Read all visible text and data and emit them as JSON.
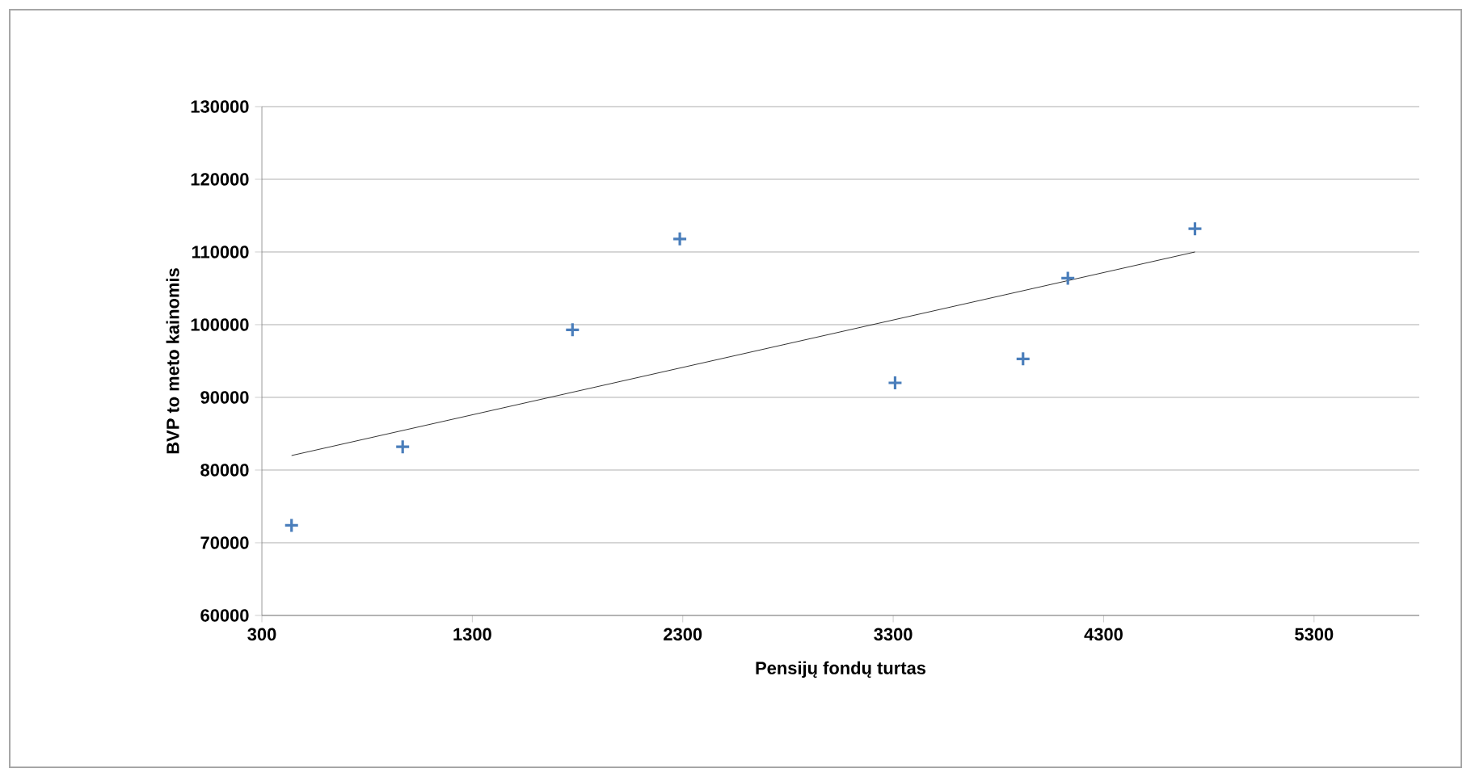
{
  "chart_data": {
    "type": "scatter",
    "xlabel": "Pensijų fondų turtas",
    "ylabel": "BVP to meto kainomis",
    "xlim": [
      300,
      5800
    ],
    "xticks": [
      300,
      1300,
      2300,
      3300,
      4300,
      5300
    ],
    "ylim": [
      60000,
      130000
    ],
    "yticks": [
      60000,
      70000,
      80000,
      90000,
      100000,
      110000,
      120000,
      130000
    ],
    "grid": "y",
    "marker": "cross",
    "series": [
      {
        "color": "#4a7ebb",
        "x": [
          441,
          969,
          1776,
          2286,
          3309,
          3917,
          4130,
          4734
        ],
        "values": [
          72400,
          83200,
          99300,
          111800,
          92000,
          95300,
          106400,
          113200
        ]
      },
      {
        "type": "line",
        "color": "#000000",
        "marker": "none",
        "line_style": "solid",
        "x": [
          441,
          4734
        ],
        "values": [
          82000,
          110000
        ]
      }
    ]
  }
}
